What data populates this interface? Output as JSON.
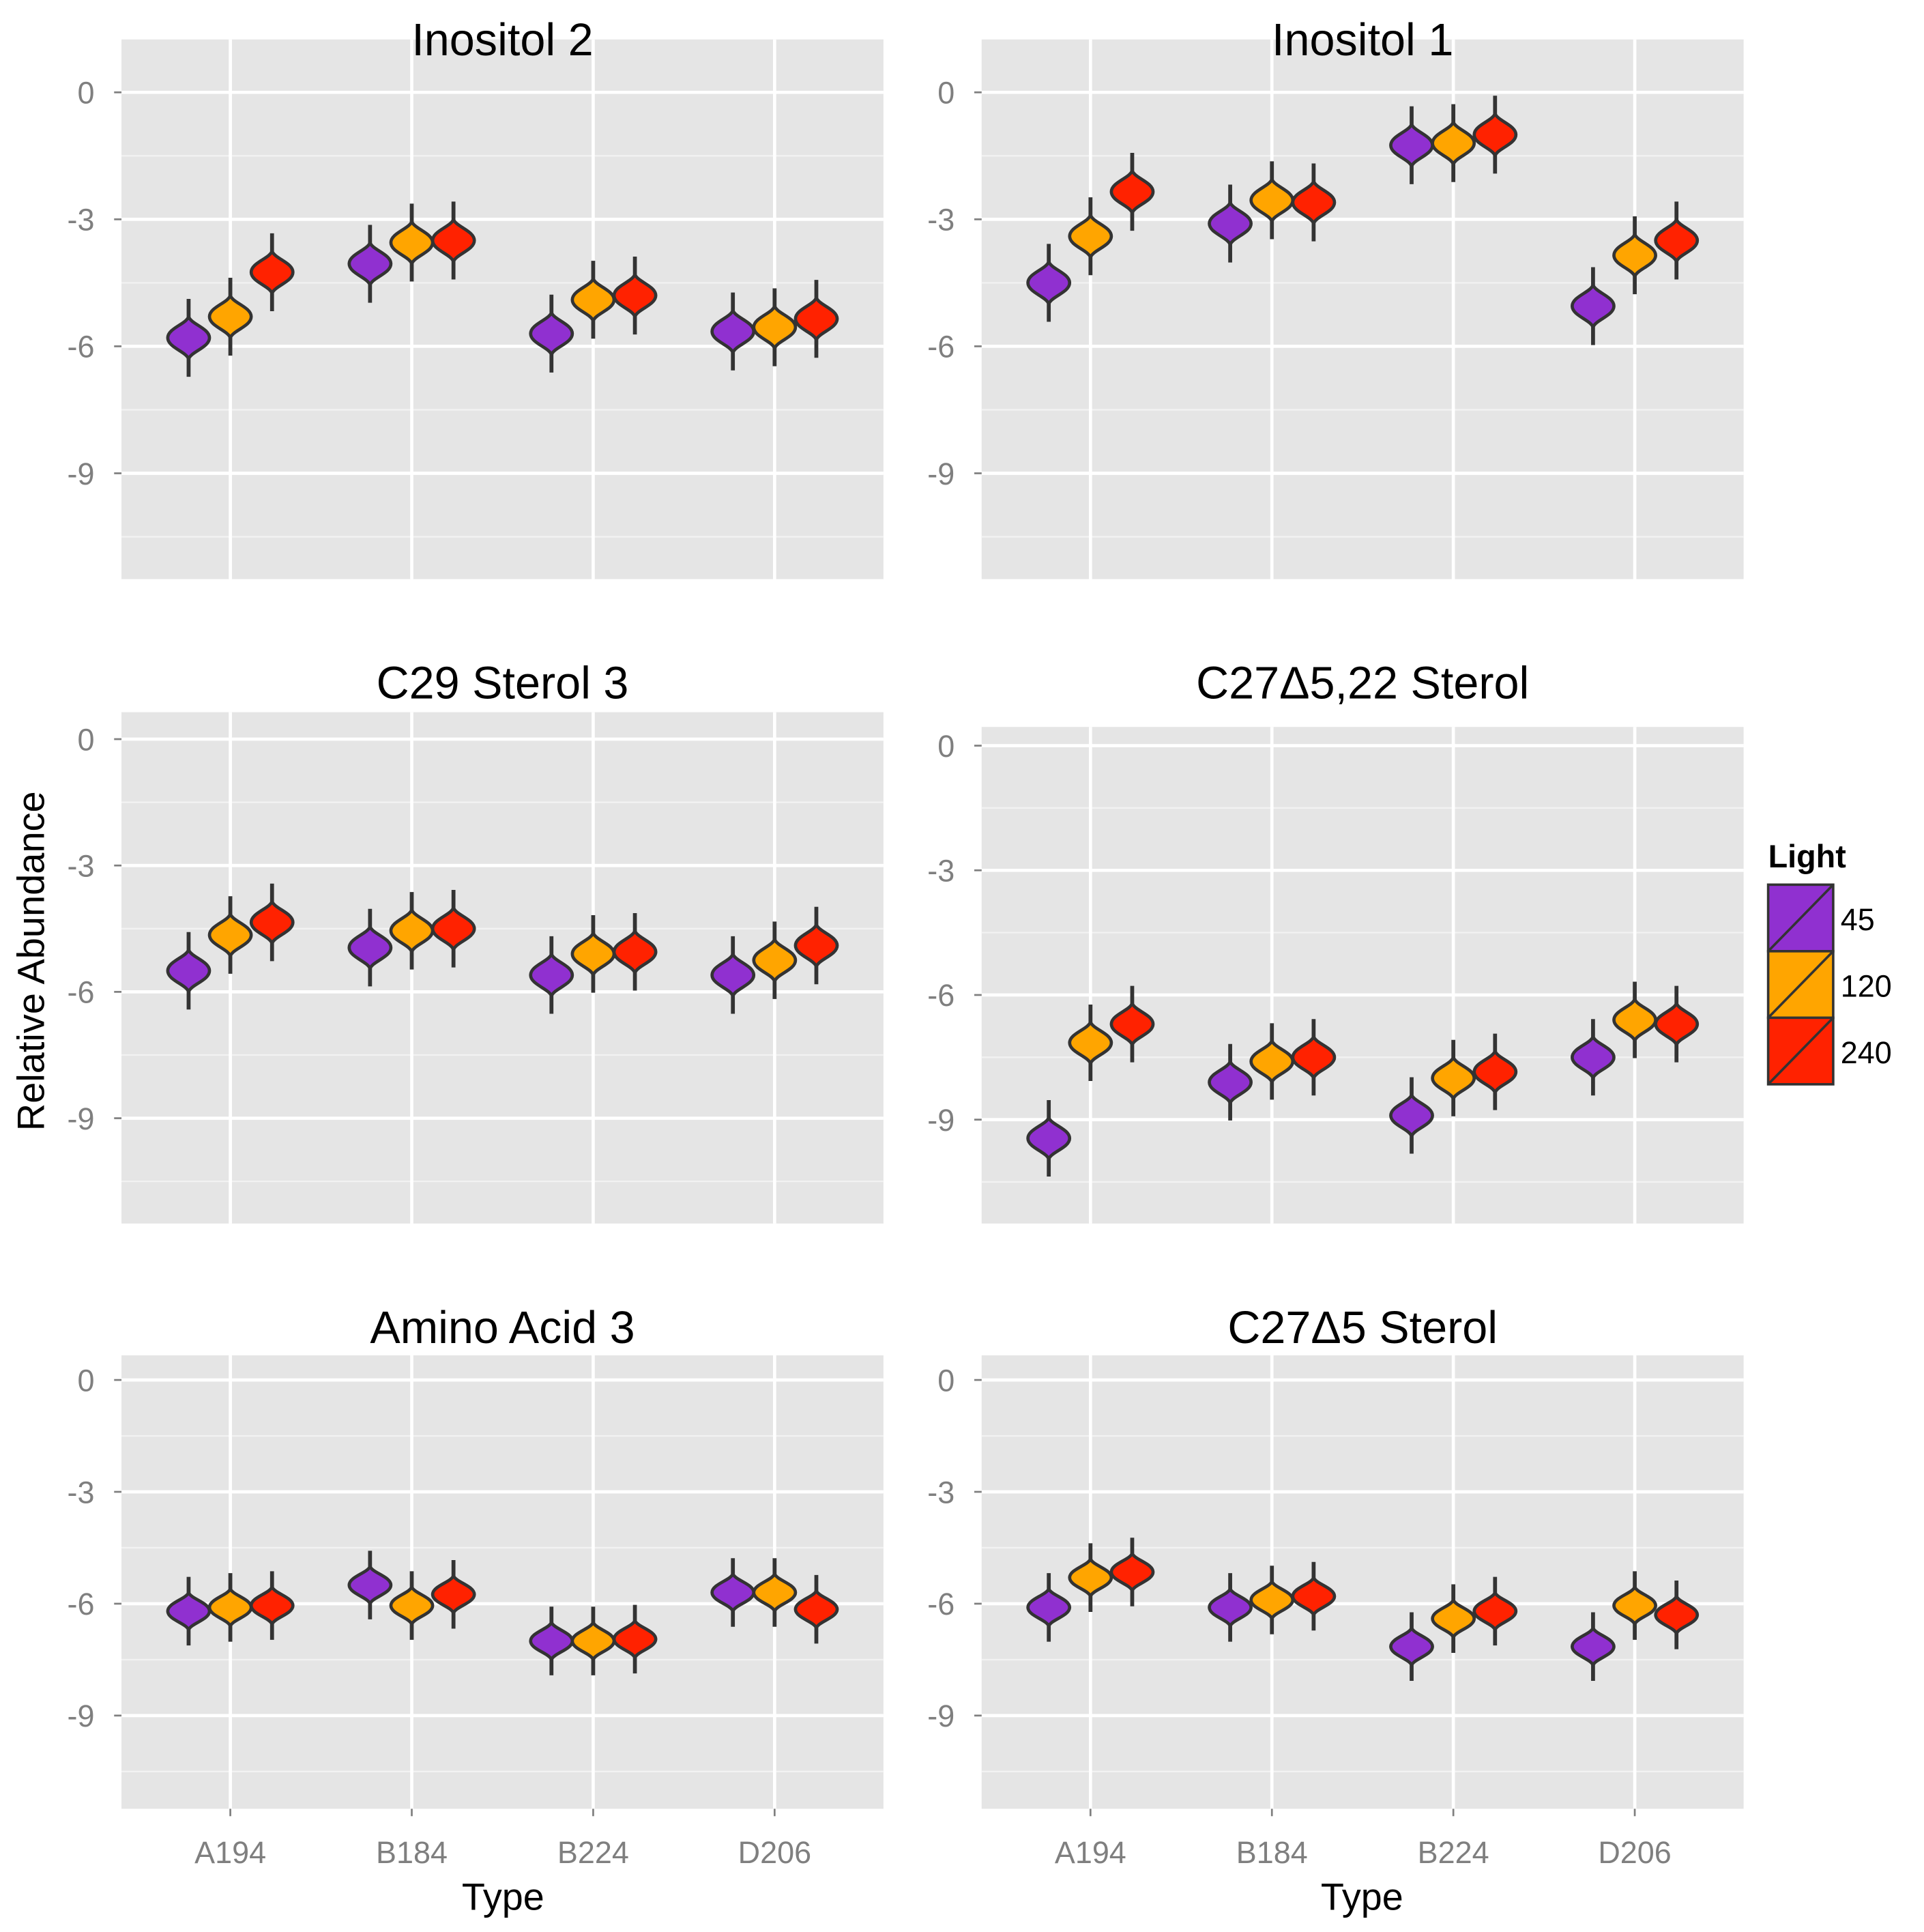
{
  "chart_data": {
    "type": "violin",
    "ylabel": "Relative Abundance",
    "xlabel": "Type",
    "categories": [
      "A194",
      "B184",
      "B224",
      "D206"
    ],
    "yticks": [
      0,
      -3,
      -6,
      -9
    ],
    "ytick_labels": [
      "0",
      "-3",
      "-6",
      "-9"
    ],
    "legend": {
      "title": "Light",
      "position": "right",
      "entries": [
        {
          "label": "45",
          "color": "#9030D0"
        },
        {
          "label": "120",
          "color": "#FFA500"
        },
        {
          "label": "240",
          "color": "#FF2200"
        }
      ]
    },
    "grid": true,
    "panels": [
      {
        "title": "Inositol 2",
        "ylim": [
          -11.5,
          1.25
        ],
        "series": [
          [
            -5.8,
            -5.3,
            -4.25
          ],
          [
            -4.05,
            -3.55,
            -3.5
          ],
          [
            -5.7,
            -4.9,
            -4.8
          ],
          [
            -5.65,
            -5.55,
            -5.35
          ]
        ]
      },
      {
        "title": "Inositol 1",
        "ylim": [
          -11.5,
          1.25
        ],
        "series": [
          [
            -4.5,
            -3.4,
            -2.35
          ],
          [
            -3.1,
            -2.55,
            -2.6
          ],
          [
            -1.25,
            -1.2,
            -1.0
          ],
          [
            -5.05,
            -3.85,
            -3.5
          ]
        ]
      },
      {
        "title": "C29 Sterol 3",
        "ylim": [
          -11.5,
          0.64
        ],
        "series": [
          [
            -5.5,
            -4.65,
            -4.35
          ],
          [
            -4.95,
            -4.55,
            -4.5
          ],
          [
            -5.6,
            -5.1,
            -5.05
          ],
          [
            -5.6,
            -5.25,
            -4.9
          ]
        ]
      },
      {
        "title": "C27Δ5,22 Sterol",
        "ylim": [
          -11.5,
          0.45
        ],
        "series": [
          [
            -9.45,
            -7.15,
            -6.7
          ],
          [
            -8.1,
            -7.6,
            -7.5
          ],
          [
            -8.9,
            -8.0,
            -7.85
          ],
          [
            -7.5,
            -6.6,
            -6.7
          ]
        ]
      },
      {
        "title": "Amino Acid 3",
        "ylim": [
          -11.5,
          0.66
        ],
        "series": [
          [
            -6.2,
            -6.1,
            -6.05
          ],
          [
            -5.5,
            -6.05,
            -5.75
          ],
          [
            -7.0,
            -7.0,
            -6.95
          ],
          [
            -5.7,
            -5.7,
            -6.15
          ]
        ]
      },
      {
        "title": "C27Δ5 Sterol",
        "ylim": [
          -11.5,
          0.66
        ],
        "series": [
          [
            -6.1,
            -5.3,
            -5.15
          ],
          [
            -6.1,
            -5.9,
            -5.8
          ],
          [
            -7.15,
            -6.4,
            -6.2
          ],
          [
            -7.15,
            -6.05,
            -6.3
          ]
        ]
      }
    ]
  }
}
